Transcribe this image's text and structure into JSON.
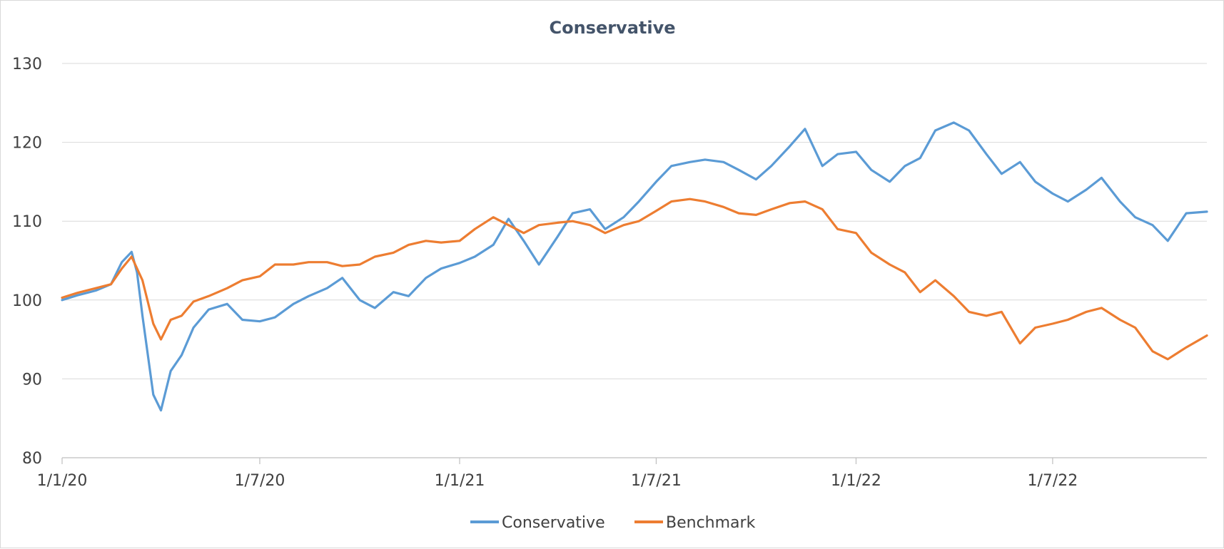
{
  "chart_data": {
    "type": "line",
    "title": "Conservative",
    "xlabel": "",
    "ylabel": "",
    "ylim": [
      80,
      130
    ],
    "yticks": [
      "80",
      "90",
      "100",
      "110",
      "120",
      "130"
    ],
    "xlim": [
      "2020-01-01",
      "2022-11-20"
    ],
    "xticks": [
      {
        "date": "2020-01-01",
        "label": "1/1/20"
      },
      {
        "date": "2020-07-01",
        "label": "1/7/20"
      },
      {
        "date": "2021-01-01",
        "label": "1/1/21"
      },
      {
        "date": "2021-07-01",
        "label": "1/7/21"
      },
      {
        "date": "2022-01-01",
        "label": "1/1/22"
      },
      {
        "date": "2022-07-01",
        "label": "1/7/22"
      }
    ],
    "grid": true,
    "legend": "bottom",
    "series": [
      {
        "name": "Conservative",
        "color": "#5b9bd5",
        "points": [
          [
            "2020-01-01",
            100.0
          ],
          [
            "2020-01-15",
            100.6
          ],
          [
            "2020-02-01",
            101.2
          ],
          [
            "2020-02-15",
            102.0
          ],
          [
            "2020-02-25",
            104.8
          ],
          [
            "2020-03-05",
            106.1
          ],
          [
            "2020-03-10",
            103.5
          ],
          [
            "2020-03-15",
            98.0
          ],
          [
            "2020-03-25",
            88.0
          ],
          [
            "2020-04-01",
            86.0
          ],
          [
            "2020-04-10",
            91.0
          ],
          [
            "2020-04-20",
            93.0
          ],
          [
            "2020-05-01",
            96.5
          ],
          [
            "2020-05-15",
            98.8
          ],
          [
            "2020-06-01",
            99.5
          ],
          [
            "2020-06-15",
            97.5
          ],
          [
            "2020-07-01",
            97.3
          ],
          [
            "2020-07-15",
            97.8
          ],
          [
            "2020-08-01",
            99.5
          ],
          [
            "2020-08-15",
            100.5
          ],
          [
            "2020-09-01",
            101.5
          ],
          [
            "2020-09-15",
            102.8
          ],
          [
            "2020-10-01",
            100.0
          ],
          [
            "2020-10-15",
            99.0
          ],
          [
            "2020-11-01",
            101.0
          ],
          [
            "2020-11-15",
            100.5
          ],
          [
            "2020-12-01",
            102.8
          ],
          [
            "2020-12-15",
            104.0
          ],
          [
            "2021-01-01",
            104.7
          ],
          [
            "2021-01-15",
            105.5
          ],
          [
            "2021-02-01",
            107.0
          ],
          [
            "2021-02-15",
            110.3
          ],
          [
            "2021-03-01",
            107.5
          ],
          [
            "2021-03-15",
            104.5
          ],
          [
            "2021-04-01",
            108.0
          ],
          [
            "2021-04-15",
            111.0
          ],
          [
            "2021-05-01",
            111.5
          ],
          [
            "2021-05-15",
            109.0
          ],
          [
            "2021-06-01",
            110.5
          ],
          [
            "2021-06-15",
            112.5
          ],
          [
            "2021-07-01",
            115.0
          ],
          [
            "2021-07-15",
            117.0
          ],
          [
            "2021-08-01",
            117.5
          ],
          [
            "2021-08-15",
            117.8
          ],
          [
            "2021-09-01",
            117.5
          ],
          [
            "2021-09-15",
            116.5
          ],
          [
            "2021-10-01",
            115.3
          ],
          [
            "2021-10-15",
            117.0
          ],
          [
            "2021-11-01",
            119.5
          ],
          [
            "2021-11-15",
            121.7
          ],
          [
            "2021-12-01",
            117.0
          ],
          [
            "2021-12-15",
            118.5
          ],
          [
            "2022-01-01",
            118.8
          ],
          [
            "2022-01-15",
            116.5
          ],
          [
            "2022-02-01",
            115.0
          ],
          [
            "2022-02-15",
            117.0
          ],
          [
            "2022-03-01",
            118.0
          ],
          [
            "2022-03-15",
            121.5
          ],
          [
            "2022-04-01",
            122.5
          ],
          [
            "2022-04-15",
            121.5
          ],
          [
            "2022-05-01",
            118.5
          ],
          [
            "2022-05-15",
            116.0
          ],
          [
            "2022-06-01",
            117.5
          ],
          [
            "2022-06-15",
            115.0
          ],
          [
            "2022-07-01",
            113.5
          ],
          [
            "2022-07-15",
            112.5
          ],
          [
            "2022-08-01",
            114.0
          ],
          [
            "2022-08-15",
            115.5
          ],
          [
            "2022-09-01",
            112.5
          ],
          [
            "2022-09-15",
            110.5
          ],
          [
            "2022-10-01",
            109.5
          ],
          [
            "2022-10-15",
            107.5
          ],
          [
            "2022-11-01",
            111.0
          ],
          [
            "2022-11-20",
            111.2
          ]
        ]
      },
      {
        "name": "Benchmark",
        "color": "#ed7d31",
        "points": [
          [
            "2020-01-01",
            100.3
          ],
          [
            "2020-01-15",
            100.9
          ],
          [
            "2020-02-01",
            101.5
          ],
          [
            "2020-02-15",
            102.0
          ],
          [
            "2020-02-25",
            104.0
          ],
          [
            "2020-03-05",
            105.5
          ],
          [
            "2020-03-10",
            104.0
          ],
          [
            "2020-03-15",
            102.5
          ],
          [
            "2020-03-25",
            97.0
          ],
          [
            "2020-04-01",
            95.0
          ],
          [
            "2020-04-10",
            97.5
          ],
          [
            "2020-04-20",
            98.0
          ],
          [
            "2020-05-01",
            99.8
          ],
          [
            "2020-05-15",
            100.5
          ],
          [
            "2020-06-01",
            101.5
          ],
          [
            "2020-06-15",
            102.5
          ],
          [
            "2020-07-01",
            103.0
          ],
          [
            "2020-07-15",
            104.5
          ],
          [
            "2020-08-01",
            104.5
          ],
          [
            "2020-08-15",
            104.8
          ],
          [
            "2020-09-01",
            104.8
          ],
          [
            "2020-09-15",
            104.3
          ],
          [
            "2020-10-01",
            104.5
          ],
          [
            "2020-10-15",
            105.5
          ],
          [
            "2020-11-01",
            106.0
          ],
          [
            "2020-11-15",
            107.0
          ],
          [
            "2020-12-01",
            107.5
          ],
          [
            "2020-12-15",
            107.3
          ],
          [
            "2021-01-01",
            107.5
          ],
          [
            "2021-01-15",
            109.0
          ],
          [
            "2021-02-01",
            110.5
          ],
          [
            "2021-02-15",
            109.5
          ],
          [
            "2021-03-01",
            108.5
          ],
          [
            "2021-03-15",
            109.5
          ],
          [
            "2021-04-01",
            109.8
          ],
          [
            "2021-04-15",
            110.0
          ],
          [
            "2021-05-01",
            109.5
          ],
          [
            "2021-05-15",
            108.5
          ],
          [
            "2021-06-01",
            109.5
          ],
          [
            "2021-06-15",
            110.0
          ],
          [
            "2021-07-01",
            111.3
          ],
          [
            "2021-07-15",
            112.5
          ],
          [
            "2021-08-01",
            112.8
          ],
          [
            "2021-08-15",
            112.5
          ],
          [
            "2021-09-01",
            111.8
          ],
          [
            "2021-09-15",
            111.0
          ],
          [
            "2021-10-01",
            110.8
          ],
          [
            "2021-10-15",
            111.5
          ],
          [
            "2021-11-01",
            112.3
          ],
          [
            "2021-11-15",
            112.5
          ],
          [
            "2021-12-01",
            111.5
          ],
          [
            "2021-12-15",
            109.0
          ],
          [
            "2022-01-01",
            108.5
          ],
          [
            "2022-01-15",
            106.0
          ],
          [
            "2022-02-01",
            104.5
          ],
          [
            "2022-02-15",
            103.5
          ],
          [
            "2022-03-01",
            101.0
          ],
          [
            "2022-03-15",
            102.5
          ],
          [
            "2022-04-01",
            100.5
          ],
          [
            "2022-04-15",
            98.5
          ],
          [
            "2022-05-01",
            98.0
          ],
          [
            "2022-05-15",
            98.5
          ],
          [
            "2022-06-01",
            94.5
          ],
          [
            "2022-06-15",
            96.5
          ],
          [
            "2022-07-01",
            97.0
          ],
          [
            "2022-07-15",
            97.5
          ],
          [
            "2022-08-01",
            98.5
          ],
          [
            "2022-08-15",
            99.0
          ],
          [
            "2022-09-01",
            97.5
          ],
          [
            "2022-09-15",
            96.5
          ],
          [
            "2022-10-01",
            93.5
          ],
          [
            "2022-10-15",
            92.5
          ],
          [
            "2022-11-01",
            94.0
          ],
          [
            "2022-11-20",
            95.5
          ]
        ]
      }
    ]
  }
}
